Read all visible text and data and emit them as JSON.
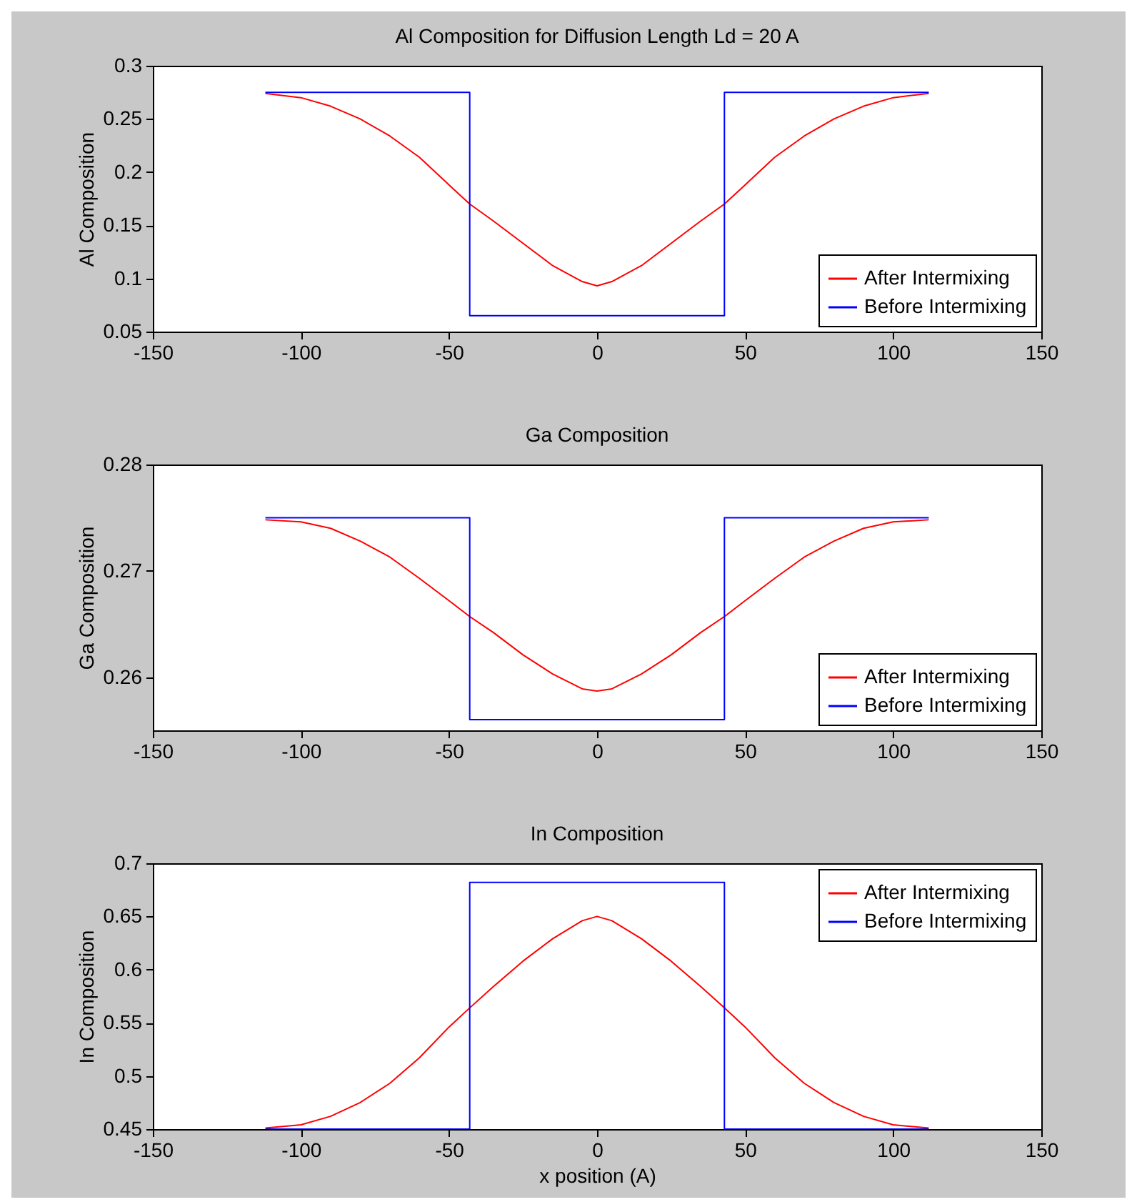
{
  "chart_data": [
    {
      "type": "line",
      "title": "Al Composition for Diffusion Length Ld = 20 A",
      "ylabel": "Al Composition",
      "xlim": [
        -150,
        150
      ],
      "xticks": [
        -150,
        -100,
        -50,
        0,
        50,
        100,
        150
      ],
      "ylim": [
        0.05,
        0.3
      ],
      "yticks": [
        0.05,
        {
          "value": 0.1,
          "label": "0.1"
        },
        0.15,
        {
          "value": 0.2,
          "label": "0.2"
        },
        0.25,
        {
          "value": 0.3,
          "label": "0.3"
        }
      ],
      "grid": false,
      "legend": "bottom right",
      "series": [
        {
          "name": "After Intermixing",
          "color": "#ff0000",
          "x": [
            -112,
            -100,
            -90,
            -80,
            -70,
            -60,
            -50,
            -43,
            -35,
            -25,
            -15,
            -5,
            0,
            5,
            15,
            25,
            35,
            43,
            50,
            60,
            70,
            80,
            90,
            100,
            112
          ],
          "values": [
            0.274,
            0.27,
            0.262,
            0.25,
            0.234,
            0.214,
            0.188,
            0.17,
            0.154,
            0.133,
            0.112,
            0.097,
            0.093,
            0.097,
            0.112,
            0.133,
            0.154,
            0.17,
            0.188,
            0.214,
            0.234,
            0.25,
            0.262,
            0.27,
            0.274
          ]
        },
        {
          "name": "Before Intermixing",
          "color": "#0000ff",
          "x": [
            -112,
            -43,
            -43,
            43,
            43,
            112
          ],
          "values": [
            0.275,
            0.275,
            0.065,
            0.065,
            0.275,
            0.275
          ]
        }
      ]
    },
    {
      "type": "line",
      "title": "Ga Composition",
      "ylabel": "Ga Composition",
      "xlim": [
        -150,
        150
      ],
      "xticks": [
        -150,
        -100,
        -50,
        0,
        50,
        100,
        150
      ],
      "ylim": [
        0.255,
        0.28
      ],
      "yticks": [
        0.26,
        0.27,
        0.28
      ],
      "grid": false,
      "legend": "bottom right",
      "series": [
        {
          "name": "After Intermixing",
          "color": "#ff0000",
          "x": [
            -112,
            -100,
            -90,
            -80,
            -70,
            -60,
            -50,
            -43,
            -35,
            -25,
            -15,
            -5,
            0,
            5,
            15,
            25,
            35,
            43,
            50,
            60,
            70,
            80,
            90,
            100,
            112
          ],
          "values": [
            0.2748,
            0.2746,
            0.274,
            0.2728,
            0.2713,
            0.2693,
            0.2672,
            0.2657,
            0.2642,
            0.2621,
            0.2603,
            0.2589,
            0.2587,
            0.2589,
            0.2603,
            0.2621,
            0.2642,
            0.2657,
            0.2672,
            0.2693,
            0.2713,
            0.2728,
            0.274,
            0.2746,
            0.2748
          ]
        },
        {
          "name": "Before Intermixing",
          "color": "#0000ff",
          "x": [
            -112,
            -43,
            -43,
            43,
            43,
            112
          ],
          "values": [
            0.275,
            0.275,
            0.256,
            0.256,
            0.275,
            0.275
          ]
        }
      ]
    },
    {
      "type": "line",
      "title": "In Composition",
      "xlabel": "x position (A)",
      "ylabel": "In Composition",
      "xlim": [
        -150,
        150
      ],
      "xticks": [
        -150,
        -100,
        -50,
        0,
        50,
        100,
        150
      ],
      "ylim": [
        0.45,
        0.7
      ],
      "yticks": [
        0.45,
        {
          "value": 0.5,
          "label": "0.5"
        },
        0.55,
        {
          "value": 0.6,
          "label": "0.6"
        },
        0.65,
        {
          "value": 0.7,
          "label": "0.7"
        }
      ],
      "grid": false,
      "legend": "top right",
      "series": [
        {
          "name": "After Intermixing",
          "color": "#ff0000",
          "x": [
            -112,
            -100,
            -90,
            -80,
            -70,
            -60,
            -50,
            -43,
            -35,
            -25,
            -15,
            -5,
            0,
            5,
            15,
            25,
            35,
            43,
            50,
            60,
            70,
            80,
            90,
            100,
            112
          ],
          "values": [
            0.451,
            0.454,
            0.462,
            0.475,
            0.493,
            0.517,
            0.546,
            0.564,
            0.584,
            0.608,
            0.629,
            0.646,
            0.65,
            0.646,
            0.629,
            0.608,
            0.584,
            0.564,
            0.546,
            0.517,
            0.493,
            0.475,
            0.462,
            0.454,
            0.451
          ]
        },
        {
          "name": "Before Intermixing",
          "color": "#0000ff",
          "x": [
            -112,
            -43,
            -43,
            43,
            43,
            112
          ],
          "values": [
            0.45,
            0.45,
            0.682,
            0.682,
            0.45,
            0.45
          ]
        }
      ]
    }
  ]
}
